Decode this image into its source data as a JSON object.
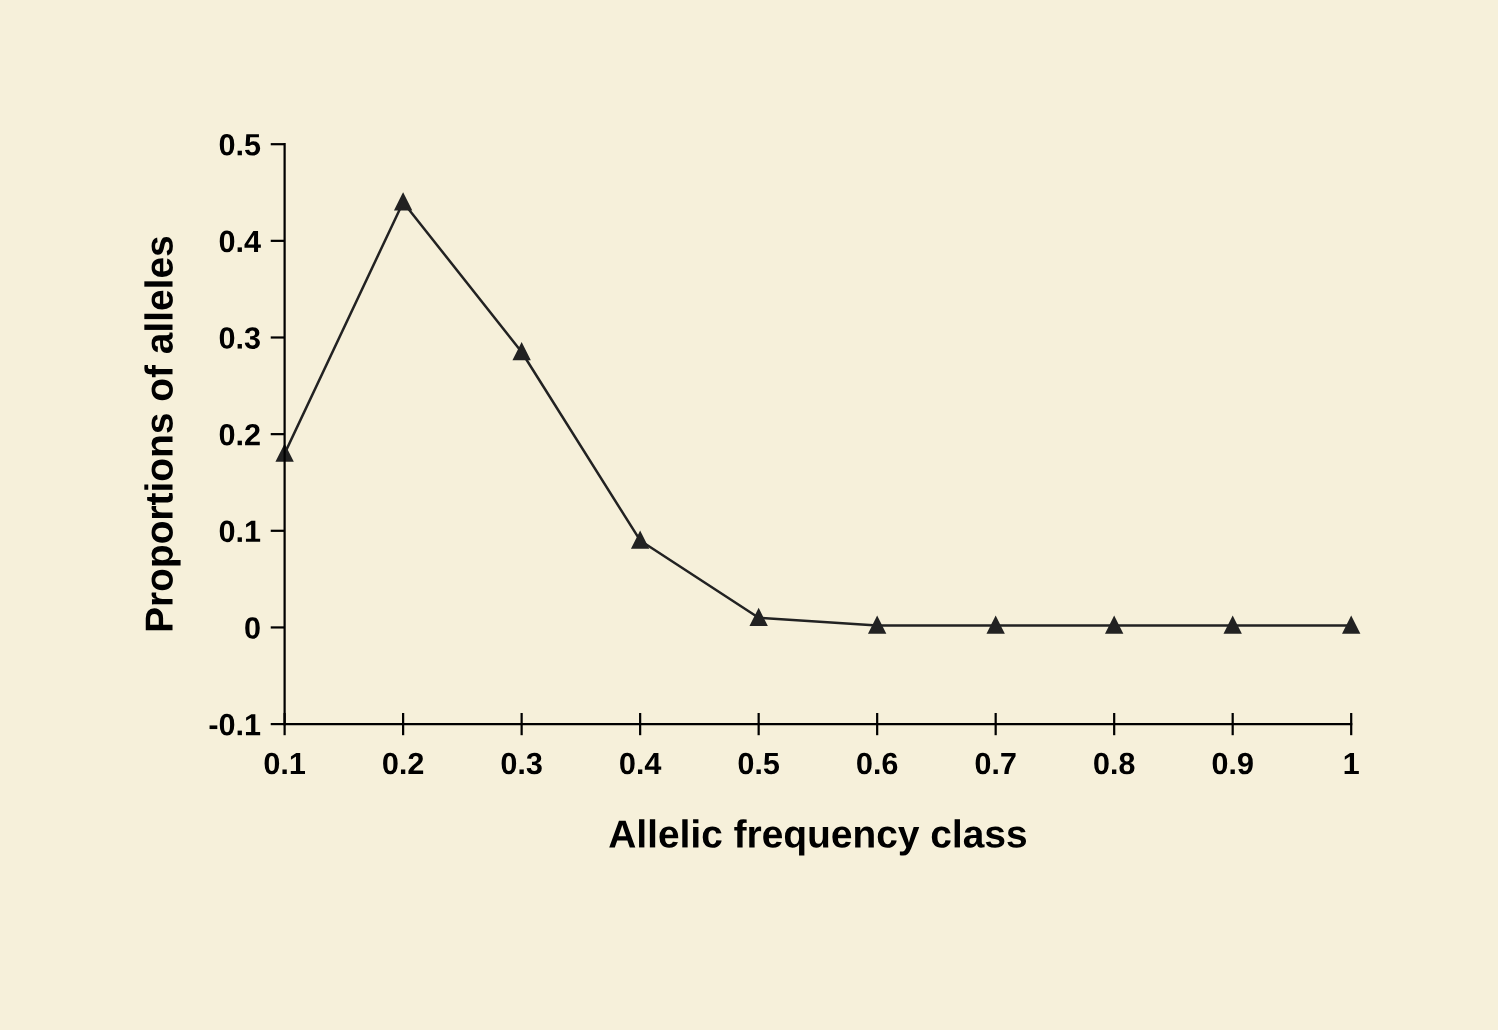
{
  "chart_data": {
    "type": "line",
    "xlabel": "Allelic frequency class",
    "ylabel": "Proportions of alleles",
    "x": [
      0.1,
      0.2,
      0.3,
      0.4,
      0.5,
      0.6,
      0.7,
      0.8,
      0.9,
      1
    ],
    "series": [
      {
        "color": "#222222",
        "values": [
          0.18,
          0.44,
          0.285,
          0.09,
          0.01,
          0.002,
          0.002,
          0.002,
          0.002,
          0.002
        ]
      }
    ],
    "xlim": [
      0.1,
      1
    ],
    "xticks": [
      0.1,
      0.2,
      0.3,
      0.4,
      0.5,
      0.6,
      0.7,
      0.8,
      0.9,
      1
    ],
    "ylim": [
      -0.1,
      0.5
    ],
    "yticks": [
      -0.1,
      0,
      0.1,
      0.2,
      0.3,
      0.4,
      0.5
    ],
    "marker": "triangle",
    "line_style": "solid",
    "grid": false,
    "legend": false
  }
}
